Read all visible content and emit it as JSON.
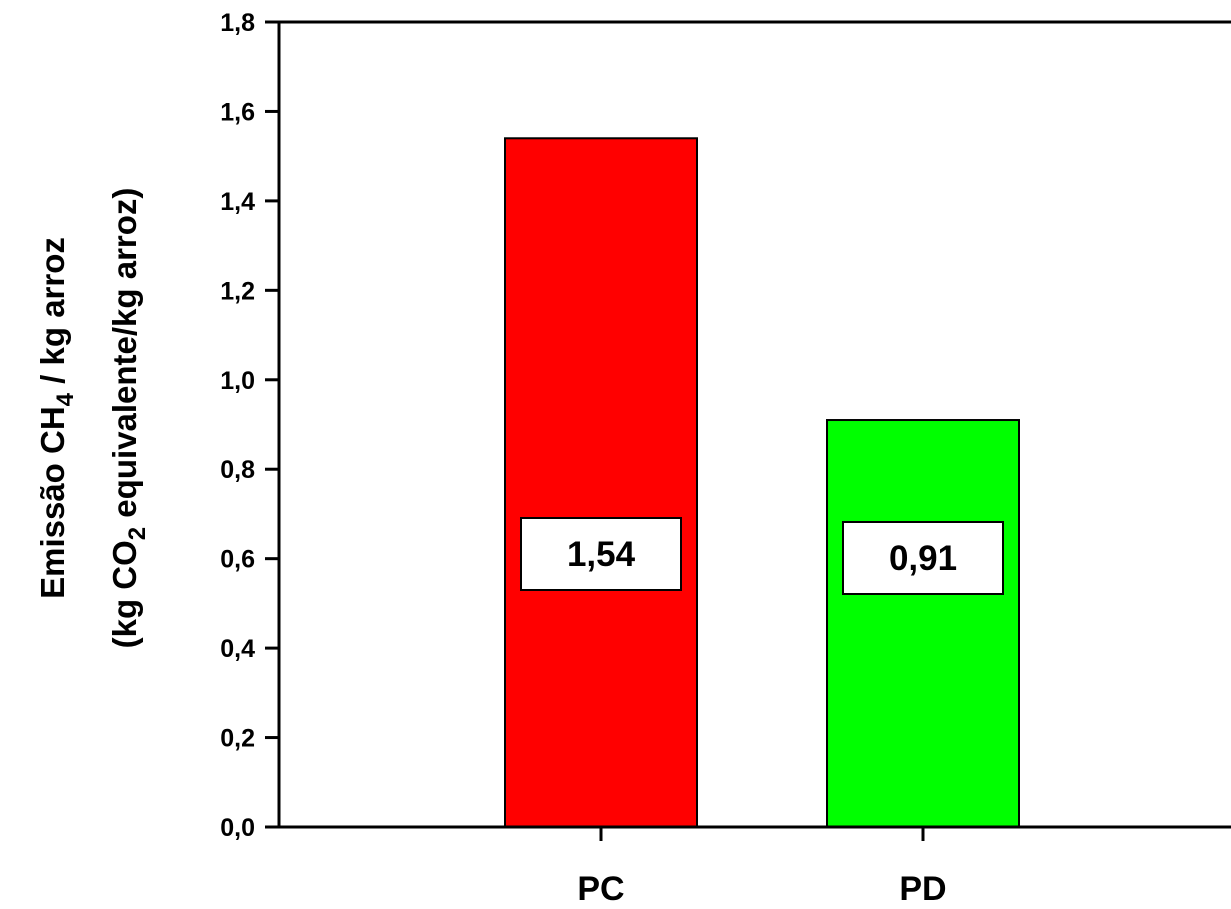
{
  "chart_data": {
    "type": "bar",
    "categories": [
      "PC",
      "PD"
    ],
    "values": [
      1.54,
      0.91
    ],
    "value_labels": [
      "1,54",
      "0,91"
    ],
    "bar_colors": [
      "#ff0000",
      "#00ff00"
    ],
    "ylabel_line1_main": "Emissão CH",
    "ylabel_line1_sub": "4",
    "ylabel_line1_rest": " / kg arroz",
    "ylabel_line2_main": "(kg CO",
    "ylabel_line2_sub": "2",
    "ylabel_line2_rest": " equivalente/kg arroz)",
    "ylim": [
      0,
      1.8
    ],
    "yticks": [
      0.0,
      0.2,
      0.4,
      0.6,
      0.8,
      1.0,
      1.2,
      1.4,
      1.6,
      1.8
    ],
    "ytick_labels": [
      "0,0",
      "0,2",
      "0,4",
      "0,6",
      "0,8",
      "1,0",
      "1,2",
      "1,4",
      "1,6",
      "1,8"
    ],
    "grid": false,
    "legend": "none"
  }
}
